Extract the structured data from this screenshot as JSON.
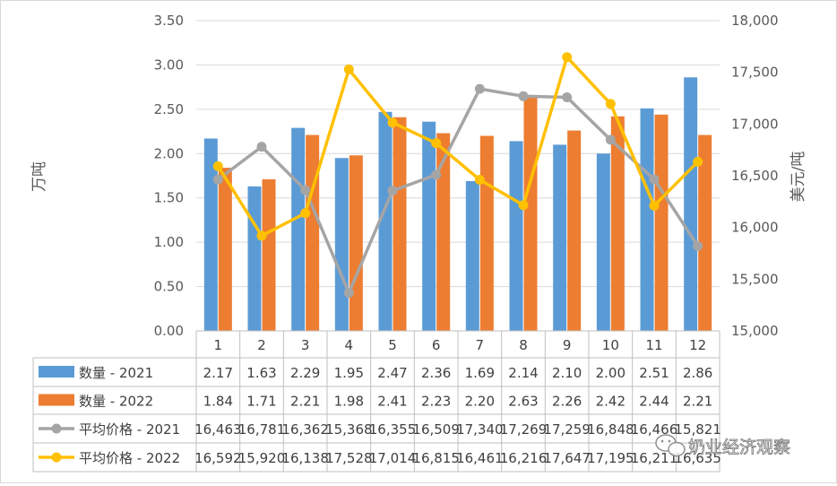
{
  "chart_data": {
    "type": "bar",
    "title": "",
    "ylabel": "万吨",
    "y2label": "美元/吨",
    "ylim": [
      0,
      3.5
    ],
    "y2lim": [
      15000,
      18000
    ],
    "yticks": [
      "0.00",
      "0.50",
      "1.00",
      "1.50",
      "2.00",
      "2.50",
      "3.00",
      "3.50"
    ],
    "y2ticks": [
      "15,000",
      "15,500",
      "16,000",
      "16,500",
      "17,000",
      "17,500",
      "18,000"
    ],
    "categories": [
      "1",
      "2",
      "3",
      "4",
      "5",
      "6",
      "7",
      "8",
      "9",
      "10",
      "11",
      "12"
    ],
    "grid": true,
    "legend": "data table below chart",
    "series": [
      {
        "name": "数量 - 2021",
        "kind": "bar",
        "axis": "left",
        "color": "#5b9bd5",
        "values": [
          2.17,
          1.63,
          2.29,
          1.95,
          2.47,
          2.36,
          1.69,
          2.14,
          2.1,
          2.0,
          2.51,
          2.86
        ],
        "labels": [
          "2.17",
          "1.63",
          "2.29",
          "1.95",
          "2.47",
          "2.36",
          "1.69",
          "2.14",
          "2.10",
          "2.00",
          "2.51",
          "2.86"
        ]
      },
      {
        "name": "数量 - 2022",
        "kind": "bar",
        "axis": "left",
        "color": "#ed7d31",
        "values": [
          1.84,
          1.71,
          2.21,
          1.98,
          2.41,
          2.23,
          2.2,
          2.63,
          2.26,
          2.42,
          2.44,
          2.21
        ],
        "labels": [
          "1.84",
          "1.71",
          "2.21",
          "1.98",
          "2.41",
          "2.23",
          "2.20",
          "2.63",
          "2.26",
          "2.42",
          "2.44",
          "2.21"
        ]
      },
      {
        "name": "平均价格 - 2021",
        "kind": "line",
        "axis": "right",
        "color": "#a5a5a5",
        "values": [
          16463,
          16781,
          16362,
          15368,
          16355,
          16509,
          17340,
          17269,
          17259,
          16848,
          16466,
          15821
        ],
        "labels": [
          "16,463",
          "16,781",
          "16,362",
          "15,368",
          "16,355",
          "16,509",
          "17,340",
          "17,269",
          "17,259",
          "16,848",
          "16,466",
          "15,821"
        ]
      },
      {
        "name": "平均价格 - 2022",
        "kind": "line",
        "axis": "right",
        "color": "#ffc000",
        "values": [
          16592,
          15920,
          16138,
          17528,
          17014,
          16815,
          16461,
          16216,
          17647,
          17195,
          16211,
          16635
        ],
        "labels": [
          "16,592",
          "15,920",
          "16,138",
          "17,528",
          "17,014",
          "16,815",
          "16,461",
          "16,216",
          "17,647",
          "17,195",
          "16,211",
          "16,635"
        ]
      }
    ]
  },
  "watermark": {
    "text": "奶业经济观察",
    "icon": "wechat-icon"
  }
}
